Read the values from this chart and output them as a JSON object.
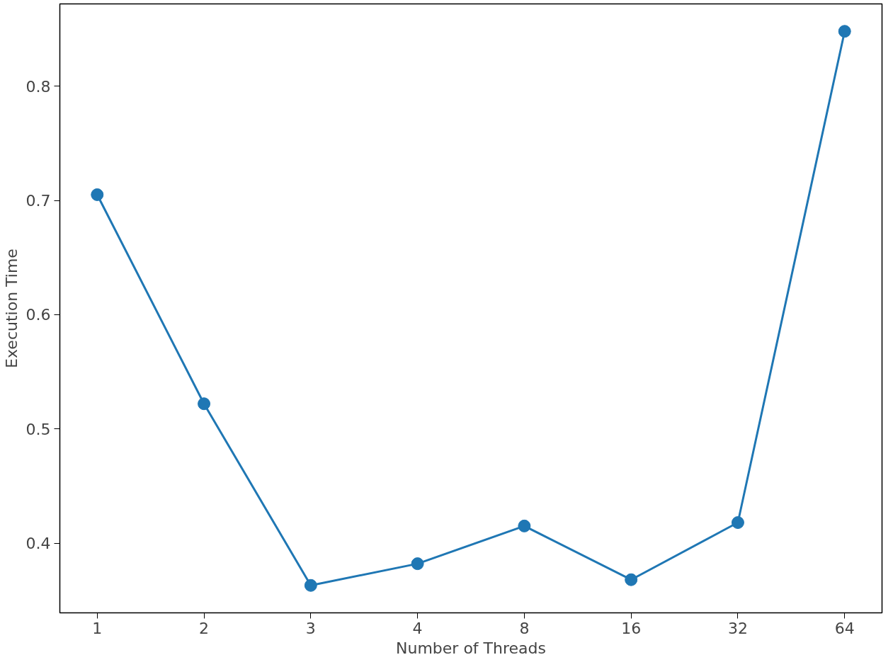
{
  "chart_data": {
    "type": "line",
    "xlabel": "Number of Threads",
    "ylabel": "Execution Time",
    "categories": [
      "1",
      "2",
      "3",
      "4",
      "8",
      "16",
      "32",
      "64"
    ],
    "series": [
      {
        "color": "#1f77b4",
        "values": [
          0.705,
          0.522,
          0.363,
          0.382,
          0.415,
          0.368,
          0.418,
          0.848
        ]
      }
    ],
    "ylim": [
      0.339,
      0.872
    ],
    "yticks": [
      0.4,
      0.5,
      0.6,
      0.7,
      0.8
    ],
    "grid": false,
    "marker": "circle",
    "line_style": "solid"
  }
}
